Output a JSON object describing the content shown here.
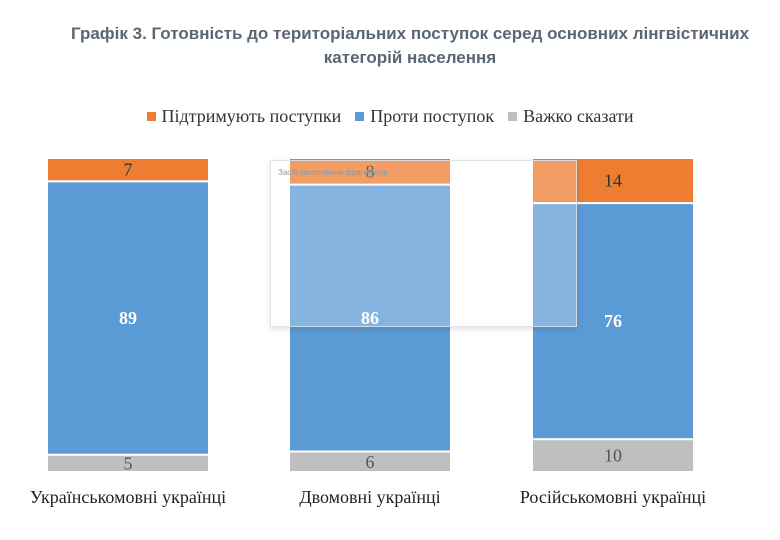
{
  "chart_data": {
    "type": "bar",
    "stacked": true,
    "title": "Графік 3. Готовність до територіальних поступок серед основних лінгвістичних категорій населення",
    "title_lines": [
      "Графік 3. Готовність до територіальних поступок серед основних лінгвістичних",
      "категорій населення"
    ],
    "categories": [
      "Українськомовні українці",
      "Двомовні українці",
      "Російськомовні українці"
    ],
    "series": [
      {
        "name": "Підтримують поступки",
        "color": "#ed7d31",
        "values": [
          7,
          8,
          14
        ]
      },
      {
        "name": "Проти поступок",
        "color": "#5b9bd5",
        "values": [
          89,
          86,
          76
        ]
      },
      {
        "name": "Важко сказати",
        "color": "#bfbfbf",
        "values": [
          5,
          6,
          10
        ]
      }
    ],
    "legend_position": "top",
    "grid": false,
    "xlabel": "",
    "ylabel": ""
  },
  "overlay": {
    "label": "Засіб захоплення фрагментів"
  }
}
